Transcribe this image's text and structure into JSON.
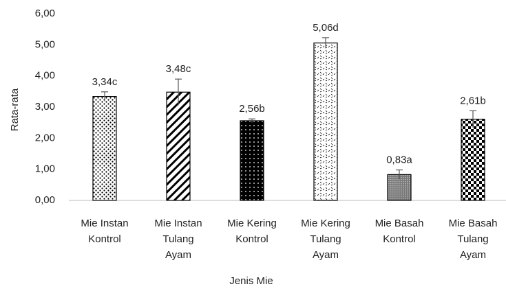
{
  "chart_data": {
    "type": "bar",
    "xlabel": "Jenis Mie",
    "ylabel": "Rata-rata",
    "categories": [
      [
        "Mie Instan",
        "Kontrol"
      ],
      [
        "Mie Instan",
        "Tulang",
        "Ayam"
      ],
      [
        "Mie Kering",
        "Kontrol"
      ],
      [
        "Mie Kering",
        "Tulang",
        "Ayam"
      ],
      [
        "Mie Basah",
        "Kontrol"
      ],
      [
        "Mie Basah",
        "Tulang",
        "Ayam"
      ]
    ],
    "values": [
      3.34,
      3.48,
      2.56,
      5.06,
      0.83,
      2.61
    ],
    "value_labels": [
      "3,34c",
      "3,48c",
      "2,56b",
      "5,06d",
      "0,83a",
      "2,61b"
    ],
    "errors": [
      0.15,
      0.42,
      0.06,
      0.17,
      0.15,
      0.27
    ],
    "color": "#000000",
    "ylim": [
      0,
      6
    ],
    "yticks": [
      {
        "value": 0,
        "label": "0,00"
      },
      {
        "value": 1,
        "label": "1,00"
      },
      {
        "value": 2,
        "label": "2,00"
      },
      {
        "value": 3,
        "label": "3,00"
      },
      {
        "value": 4,
        "label": "4,00"
      },
      {
        "value": 5,
        "label": "5,00"
      },
      {
        "value": 6,
        "label": "6,00"
      }
    ],
    "grid": false
  }
}
